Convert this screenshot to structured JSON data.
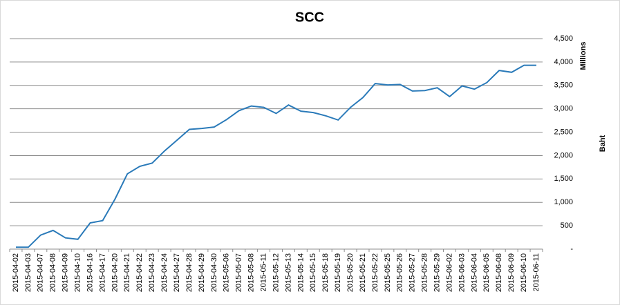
{
  "chart_data": {
    "type": "line",
    "title": "SCC",
    "y_axis_title": "Millions",
    "y_axis_subtitle": "Baht",
    "categories": [
      "2015-04-02",
      "2015-04-03",
      "2015-04-07",
      "2015-04-08",
      "2015-04-09",
      "2015-04-10",
      "2015-04-16",
      "2015-04-17",
      "2015-04-20",
      "2015-04-21",
      "2015-04-22",
      "2015-04-23",
      "2015-04-24",
      "2015-04-27",
      "2015-04-28",
      "2015-04-29",
      "2015-04-30",
      "2015-05-06",
      "2015-05-07",
      "2015-05-08",
      "2015-05-11",
      "2015-05-12",
      "2015-05-13",
      "2015-05-14",
      "2015-05-15",
      "2015-05-18",
      "2015-05-19",
      "2015-05-20",
      "2015-05-21",
      "2015-05-22",
      "2015-05-25",
      "2015-05-26",
      "2015-05-27",
      "2015-05-28",
      "2015-05-29",
      "2015-06-02",
      "2015-06-03",
      "2015-06-04",
      "2015-06-05",
      "2015-06-08",
      "2015-06-09",
      "2015-06-10",
      "2015-06-11"
    ],
    "values": [
      40,
      40,
      300,
      400,
      240,
      210,
      560,
      610,
      1070,
      1610,
      1770,
      1840,
      2100,
      2330,
      2560,
      2580,
      2610,
      2770,
      2960,
      3060,
      3030,
      2900,
      3080,
      2950,
      2920,
      2850,
      2760,
      3030,
      3240,
      3540,
      3510,
      3520,
      3380,
      3390,
      3450,
      3260,
      3490,
      3420,
      3560,
      3820,
      3780,
      3930,
      3930
    ],
    "color": "#2a7ab9",
    "ylim": [
      0,
      4500
    ],
    "yticks": [
      {
        "value": 0,
        "label": "-"
      },
      500,
      {
        "value": 1000,
        "label": "1,000"
      },
      {
        "value": 1500,
        "label": "1,500"
      },
      {
        "value": 2000,
        "label": "2,000"
      },
      {
        "value": 2500,
        "label": "2,500"
      },
      {
        "value": 3000,
        "label": "3,000"
      },
      {
        "value": 3500,
        "label": "3,500"
      },
      {
        "value": 4000,
        "label": "4,000"
      },
      {
        "value": 4500,
        "label": "4,500"
      }
    ],
    "y_axis_side": "right",
    "grid": true
  }
}
